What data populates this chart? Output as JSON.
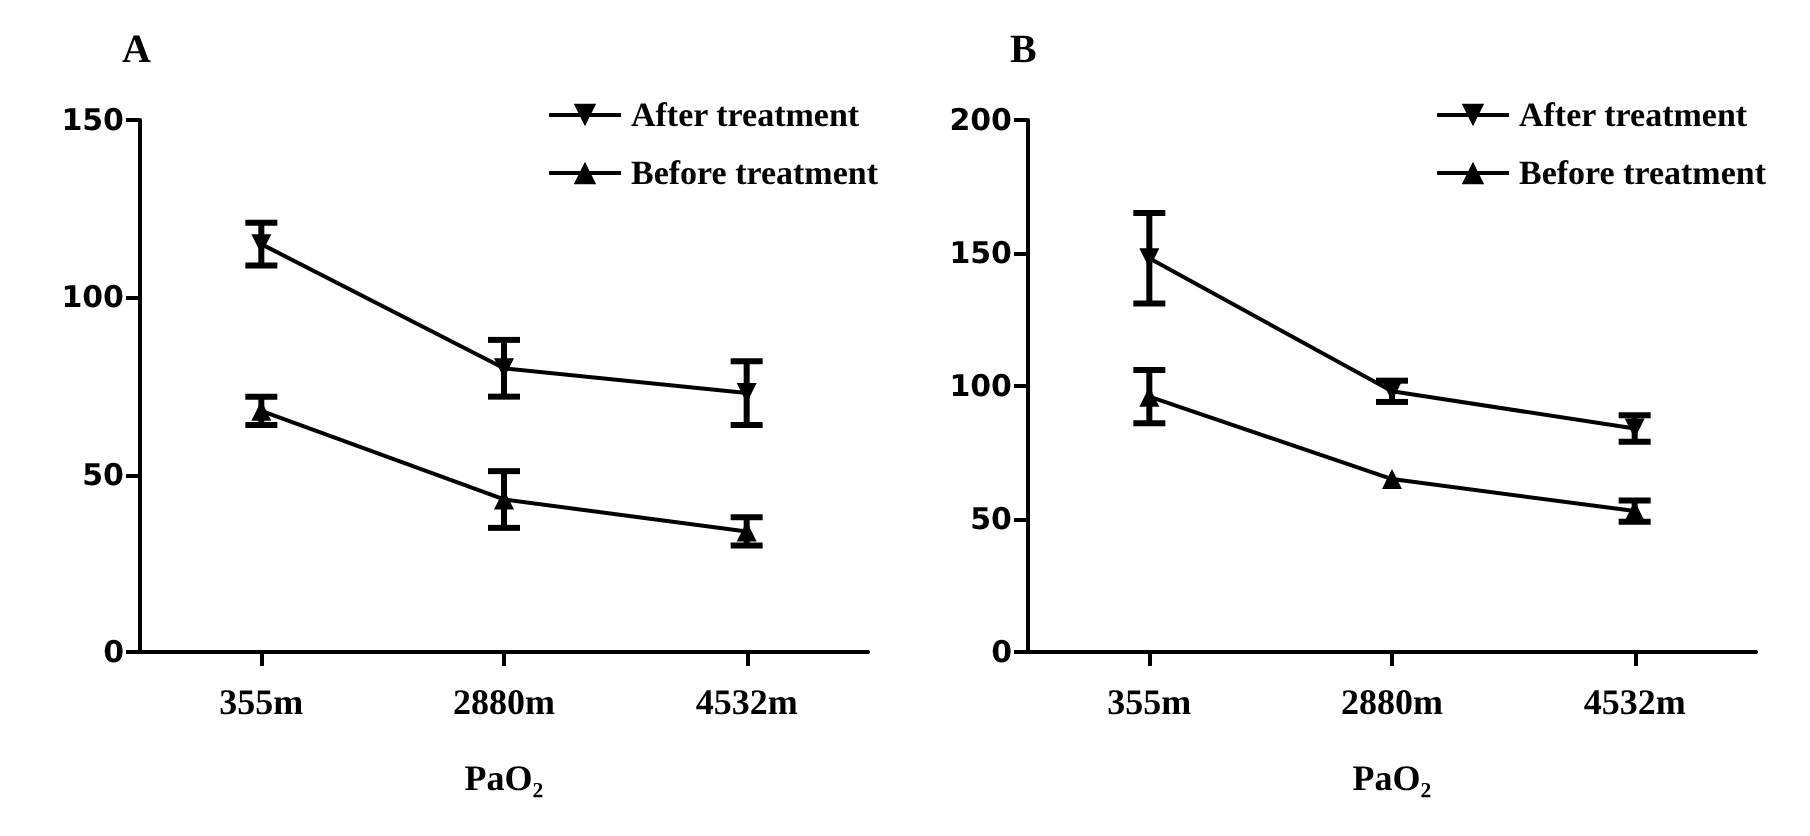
{
  "chart_data": [
    {
      "type": "line",
      "title": "A",
      "xlabel": "PaO₂",
      "categories": [
        "355m",
        "2880m",
        "4532m"
      ],
      "ylim": [
        0,
        150
      ],
      "yticks": [
        0,
        50,
        100,
        150
      ],
      "grid": false,
      "legend": "top right",
      "line_style": "solid",
      "series": [
        {
          "name": "After treatment",
          "color": "#000000",
          "marker": "triangle-down",
          "values": [
            115,
            80,
            73
          ],
          "errors": [
            6,
            8,
            9
          ]
        },
        {
          "name": "Before treatment",
          "color": "#000000",
          "marker": "triangle",
          "values": [
            68,
            43,
            34
          ],
          "errors": [
            4,
            8,
            4
          ]
        }
      ]
    },
    {
      "type": "line",
      "title": "B",
      "xlabel": "PaO₂",
      "categories": [
        "355m",
        "2880m",
        "4532m"
      ],
      "ylim": [
        0,
        200
      ],
      "yticks": [
        0,
        50,
        100,
        150,
        200
      ],
      "grid": false,
      "legend": "top right",
      "line_style": "solid",
      "series": [
        {
          "name": "After treatment",
          "color": "#000000",
          "marker": "triangle-down",
          "values": [
            148,
            98,
            84
          ],
          "errors": [
            17,
            4,
            5
          ]
        },
        {
          "name": "Before treatment",
          "color": "#000000",
          "marker": "triangle",
          "values": [
            96,
            65,
            53
          ],
          "errors": [
            10,
            null,
            4
          ]
        }
      ]
    }
  ]
}
